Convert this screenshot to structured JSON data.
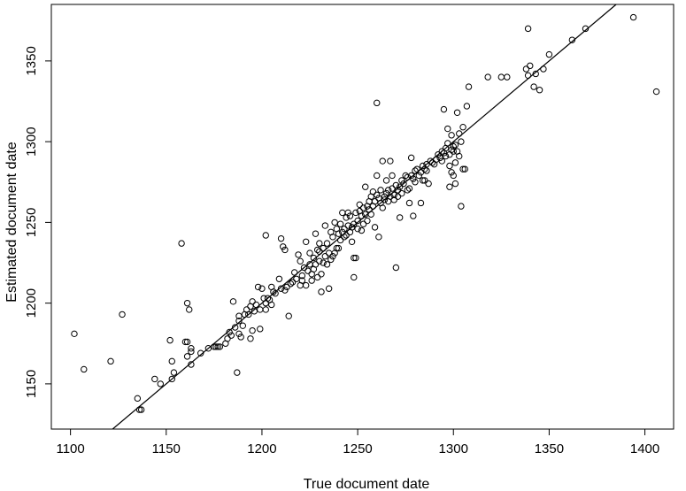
{
  "chart_data": {
    "type": "scatter",
    "title": "",
    "xlabel": "True document date",
    "ylabel": "Estimated document date",
    "xlim": [
      1090,
      1415
    ],
    "ylim": [
      1122,
      1385
    ],
    "x_ticks": [
      1100,
      1150,
      1200,
      1250,
      1300,
      1350,
      1400
    ],
    "y_ticks": [
      1150,
      1200,
      1250,
      1300,
      1350
    ],
    "grid": false,
    "legend": "none",
    "reference_line": {
      "type": "identity",
      "slope": 1,
      "intercept": 0
    },
    "colors": {
      "point": "#000000",
      "line": "#000000",
      "axes": "#000000"
    },
    "points": [
      [
        1102,
        1181
      ],
      [
        1107,
        1159
      ],
      [
        1121,
        1164
      ],
      [
        1127,
        1193
      ],
      [
        1135,
        1141
      ],
      [
        1136,
        1134
      ],
      [
        1137,
        1134
      ],
      [
        1144,
        1153
      ],
      [
        1147,
        1150
      ],
      [
        1152,
        1177
      ],
      [
        1153,
        1153
      ],
      [
        1154,
        1157
      ],
      [
        1153,
        1164
      ],
      [
        1158,
        1237
      ],
      [
        1160,
        1176
      ],
      [
        1161,
        1176
      ],
      [
        1161,
        1200
      ],
      [
        1162,
        1196
      ],
      [
        1161,
        1167
      ],
      [
        1163,
        1170
      ],
      [
        1163,
        1172
      ],
      [
        1163,
        1162
      ],
      [
        1168,
        1169
      ],
      [
        1172,
        1172
      ],
      [
        1175,
        1173
      ],
      [
        1176,
        1173
      ],
      [
        1177,
        1173
      ],
      [
        1178,
        1173
      ],
      [
        1181,
        1175
      ],
      [
        1182,
        1178
      ],
      [
        1183,
        1182
      ],
      [
        1184,
        1180
      ],
      [
        1185,
        1201
      ],
      [
        1186,
        1185
      ],
      [
        1187,
        1157
      ],
      [
        1188,
        1181
      ],
      [
        1188,
        1192
      ],
      [
        1188,
        1189
      ],
      [
        1189,
        1179
      ],
      [
        1190,
        1186
      ],
      [
        1191,
        1193
      ],
      [
        1192,
        1196
      ],
      [
        1193,
        1193
      ],
      [
        1194,
        1178
      ],
      [
        1194,
        1198
      ],
      [
        1195,
        1201
      ],
      [
        1195,
        1183
      ],
      [
        1196,
        1195
      ],
      [
        1197,
        1199
      ],
      [
        1198,
        1210
      ],
      [
        1199,
        1196
      ],
      [
        1199,
        1184
      ],
      [
        1200,
        1209
      ],
      [
        1201,
        1203
      ],
      [
        1202,
        1200
      ],
      [
        1202,
        1242
      ],
      [
        1202,
        1196
      ],
      [
        1203,
        1203
      ],
      [
        1204,
        1202
      ],
      [
        1205,
        1210
      ],
      [
        1205,
        1199
      ],
      [
        1206,
        1207
      ],
      [
        1207,
        1206
      ],
      [
        1209,
        1215
      ],
      [
        1210,
        1240
      ],
      [
        1210,
        1209
      ],
      [
        1211,
        1235
      ],
      [
        1212,
        1233
      ],
      [
        1212,
        1208
      ],
      [
        1213,
        1210
      ],
      [
        1214,
        1192
      ],
      [
        1215,
        1212
      ],
      [
        1216,
        1213
      ],
      [
        1217,
        1219
      ],
      [
        1218,
        1215
      ],
      [
        1219,
        1230
      ],
      [
        1220,
        1211
      ],
      [
        1220,
        1226
      ],
      [
        1221,
        1217
      ],
      [
        1221,
        1214
      ],
      [
        1222,
        1222
      ],
      [
        1223,
        1211
      ],
      [
        1223,
        1238
      ],
      [
        1224,
        1220
      ],
      [
        1225,
        1224
      ],
      [
        1225,
        1231
      ],
      [
        1226,
        1218
      ],
      [
        1226,
        1214
      ],
      [
        1227,
        1228
      ],
      [
        1227,
        1221
      ],
      [
        1228,
        1224
      ],
      [
        1228,
        1243
      ],
      [
        1229,
        1216
      ],
      [
        1229,
        1233
      ],
      [
        1230,
        1232
      ],
      [
        1230,
        1226
      ],
      [
        1230,
        1237
      ],
      [
        1231,
        1207
      ],
      [
        1231,
        1218
      ],
      [
        1232,
        1225
      ],
      [
        1232,
        1234
      ],
      [
        1233,
        1229
      ],
      [
        1233,
        1248
      ],
      [
        1234,
        1237
      ],
      [
        1234,
        1224
      ],
      [
        1235,
        1231
      ],
      [
        1235,
        1209
      ],
      [
        1236,
        1227
      ],
      [
        1236,
        1244
      ],
      [
        1237,
        1241
      ],
      [
        1237,
        1229
      ],
      [
        1238,
        1231
      ],
      [
        1238,
        1250
      ],
      [
        1239,
        1234
      ],
      [
        1239,
        1246
      ],
      [
        1240,
        1243
      ],
      [
        1240,
        1234
      ],
      [
        1241,
        1239
      ],
      [
        1241,
        1249
      ],
      [
        1242,
        1244
      ],
      [
        1242,
        1256
      ],
      [
        1243,
        1246
      ],
      [
        1243,
        1241
      ],
      [
        1244,
        1253
      ],
      [
        1244,
        1242
      ],
      [
        1245,
        1248
      ],
      [
        1245,
        1256
      ],
      [
        1246,
        1244
      ],
      [
        1246,
        1254
      ],
      [
        1247,
        1247
      ],
      [
        1247,
        1238
      ],
      [
        1248,
        1249
      ],
      [
        1248,
        1216
      ],
      [
        1248,
        1228
      ],
      [
        1249,
        1228
      ],
      [
        1249,
        1256
      ],
      [
        1250,
        1251
      ],
      [
        1250,
        1246
      ],
      [
        1251,
        1257
      ],
      [
        1251,
        1261
      ],
      [
        1252,
        1245
      ],
      [
        1252,
        1254
      ],
      [
        1253,
        1249
      ],
      [
        1253,
        1259
      ],
      [
        1254,
        1255
      ],
      [
        1254,
        1272
      ],
      [
        1255,
        1251
      ],
      [
        1255,
        1260
      ],
      [
        1256,
        1258
      ],
      [
        1256,
        1263
      ],
      [
        1257,
        1255
      ],
      [
        1257,
        1266
      ],
      [
        1258,
        1260
      ],
      [
        1258,
        1269
      ],
      [
        1259,
        1263
      ],
      [
        1259,
        1247
      ],
      [
        1260,
        1267
      ],
      [
        1260,
        1279
      ],
      [
        1260,
        1324
      ],
      [
        1261,
        1265
      ],
      [
        1261,
        1241
      ],
      [
        1262,
        1262
      ],
      [
        1262,
        1270
      ],
      [
        1263,
        1259
      ],
      [
        1263,
        1288
      ],
      [
        1264,
        1266
      ],
      [
        1264,
        1264
      ],
      [
        1265,
        1268
      ],
      [
        1265,
        1276
      ],
      [
        1266,
        1263
      ],
      [
        1266,
        1270
      ],
      [
        1267,
        1266
      ],
      [
        1267,
        1288
      ],
      [
        1268,
        1271
      ],
      [
        1268,
        1279
      ],
      [
        1269,
        1267
      ],
      [
        1269,
        1264
      ],
      [
        1270,
        1273
      ],
      [
        1270,
        1222
      ],
      [
        1271,
        1270
      ],
      [
        1271,
        1266
      ],
      [
        1272,
        1272
      ],
      [
        1272,
        1253
      ],
      [
        1273,
        1276
      ],
      [
        1273,
        1268
      ],
      [
        1274,
        1274
      ],
      [
        1275,
        1279
      ],
      [
        1276,
        1278
      ],
      [
        1276,
        1270
      ],
      [
        1277,
        1271
      ],
      [
        1277,
        1262
      ],
      [
        1278,
        1279
      ],
      [
        1278,
        1290
      ],
      [
        1279,
        1277
      ],
      [
        1279,
        1254
      ],
      [
        1280,
        1282
      ],
      [
        1280,
        1275
      ],
      [
        1281,
        1283
      ],
      [
        1282,
        1279
      ],
      [
        1283,
        1281
      ],
      [
        1283,
        1262
      ],
      [
        1284,
        1285
      ],
      [
        1284,
        1276
      ],
      [
        1285,
        1283
      ],
      [
        1285,
        1276
      ],
      [
        1286,
        1286
      ],
      [
        1286,
        1282
      ],
      [
        1287,
        1274
      ],
      [
        1288,
        1288
      ],
      [
        1289,
        1287
      ],
      [
        1290,
        1286
      ],
      [
        1291,
        1289
      ],
      [
        1292,
        1292
      ],
      [
        1293,
        1290
      ],
      [
        1294,
        1294
      ],
      [
        1294,
        1288
      ],
      [
        1295,
        1293
      ],
      [
        1295,
        1320
      ],
      [
        1296,
        1291
      ],
      [
        1296,
        1296
      ],
      [
        1297,
        1299
      ],
      [
        1297,
        1308
      ],
      [
        1298,
        1292
      ],
      [
        1298,
        1285
      ],
      [
        1298,
        1272
      ],
      [
        1299,
        1295
      ],
      [
        1299,
        1304
      ],
      [
        1299,
        1281
      ],
      [
        1300,
        1297
      ],
      [
        1300,
        1294
      ],
      [
        1300,
        1279
      ],
      [
        1301,
        1298
      ],
      [
        1301,
        1287
      ],
      [
        1301,
        1274
      ],
      [
        1302,
        1294
      ],
      [
        1302,
        1318
      ],
      [
        1303,
        1305
      ],
      [
        1303,
        1291
      ],
      [
        1304,
        1300
      ],
      [
        1304,
        1260
      ],
      [
        1305,
        1283
      ],
      [
        1305,
        1309
      ],
      [
        1306,
        1283
      ],
      [
        1307,
        1322
      ],
      [
        1308,
        1334
      ],
      [
        1318,
        1340
      ],
      [
        1325,
        1340
      ],
      [
        1328,
        1340
      ],
      [
        1338,
        1345
      ],
      [
        1339,
        1341
      ],
      [
        1339,
        1370
      ],
      [
        1340,
        1347
      ],
      [
        1342,
        1334
      ],
      [
        1343,
        1342
      ],
      [
        1345,
        1332
      ],
      [
        1347,
        1345
      ],
      [
        1350,
        1354
      ],
      [
        1362,
        1363
      ],
      [
        1369,
        1370
      ],
      [
        1394,
        1377
      ],
      [
        1406,
        1331
      ]
    ]
  }
}
